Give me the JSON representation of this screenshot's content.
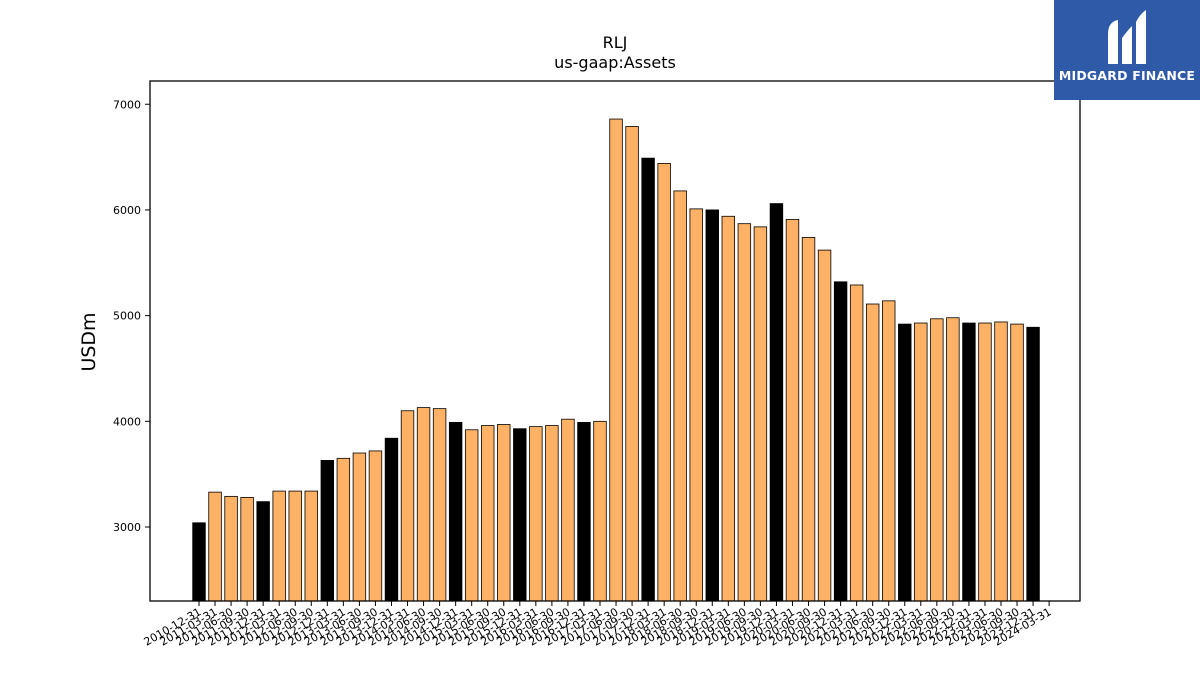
{
  "chart_data": {
    "type": "bar",
    "title": "RLJ",
    "subtitle": "us-gaap:Assets",
    "ylabel": "USDm",
    "xlabel": "",
    "ylim": [
      2300,
      7220
    ],
    "yticks": [
      3000,
      4000,
      5000,
      6000,
      7000
    ],
    "grid": false,
    "categories": [
      "2010-12-31",
      "2011-03-31",
      "2011-06-30",
      "2011-09-30",
      "2011-12-31",
      "2012-03-31",
      "2012-06-30",
      "2012-09-30",
      "2012-12-31",
      "2013-03-31",
      "2013-06-30",
      "2013-09-30",
      "2013-12-31",
      "2014-03-31",
      "2014-06-30",
      "2014-09-30",
      "2014-12-31",
      "2015-03-31",
      "2015-06-30",
      "2015-09-30",
      "2015-12-31",
      "2016-03-31",
      "2016-06-30",
      "2016-09-30",
      "2016-12-31",
      "2017-03-31",
      "2017-06-30",
      "2017-09-30",
      "2017-12-31",
      "2018-03-31",
      "2018-06-30",
      "2018-09-30",
      "2018-12-31",
      "2019-03-31",
      "2019-06-30",
      "2019-09-30",
      "2019-12-31",
      "2020-03-31",
      "2020-06-30",
      "2020-09-30",
      "2020-12-31",
      "2021-03-31",
      "2021-06-30",
      "2021-09-30",
      "2021-12-31",
      "2022-03-31",
      "2022-06-30",
      "2022-09-30",
      "2022-12-31",
      "2023-03-31",
      "2023-06-30",
      "2023-09-30",
      "2023-12-31",
      "2024-03-31"
    ],
    "values": [
      3040,
      3330,
      3290,
      3280,
      3240,
      3340,
      3340,
      3340,
      3630,
      3650,
      3700,
      3720,
      3840,
      4100,
      4130,
      4120,
      3990,
      3920,
      3960,
      3970,
      3930,
      3950,
      3960,
      4020,
      3990,
      4000,
      6860,
      6790,
      6490,
      6440,
      6180,
      6010,
      6000,
      5940,
      5870,
      5840,
      6060,
      5910,
      5740,
      5620,
      5320,
      5290,
      5110,
      5140,
      4920,
      4930,
      4970,
      4980,
      4930,
      4930,
      4940,
      4920,
      4890,
      null
    ],
    "year_end_color": "#000000",
    "quarter_color": "#ffb266",
    "edge_color": "#000000"
  },
  "logo": {
    "text": "MIDGARD FINANCE",
    "background": "#2f5aa8"
  }
}
